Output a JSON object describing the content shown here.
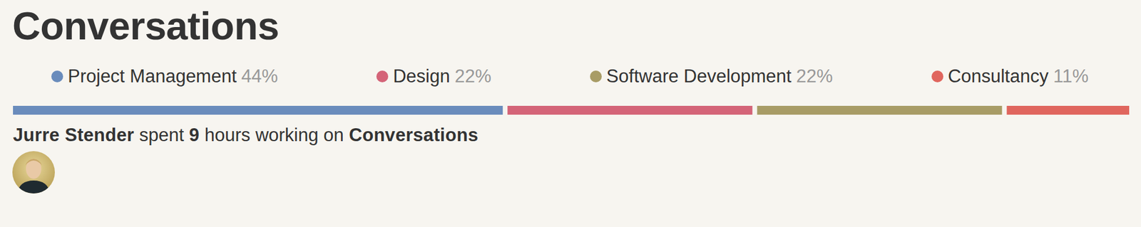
{
  "chart_data": {
    "type": "bar",
    "orientation": "horizontal",
    "stacked": true,
    "title": "Conversations",
    "categories": [
      null
    ],
    "xlim": [
      0,
      99
    ],
    "tick_labels": false,
    "legend": "top",
    "series": [
      {
        "name": "Project Management",
        "color": "#6a8cbc",
        "values": [
          44
        ],
        "value_labels": [
          "44%"
        ]
      },
      {
        "name": "Design",
        "color": "#d46478",
        "values": [
          22
        ],
        "value_labels": [
          "22%"
        ]
      },
      {
        "name": "Software Development",
        "color": "#a89c66",
        "values": [
          22
        ],
        "value_labels": [
          "22%"
        ]
      },
      {
        "name": "Consultancy",
        "color": "#e0665e",
        "values": [
          11
        ],
        "value_labels": [
          "11%"
        ]
      }
    ],
    "annotations": [
      {
        "person": "Jurre Stender",
        "text": "spent",
        "hours": 9,
        "text_after": "hours working on",
        "project": "Conversations"
      }
    ]
  }
}
